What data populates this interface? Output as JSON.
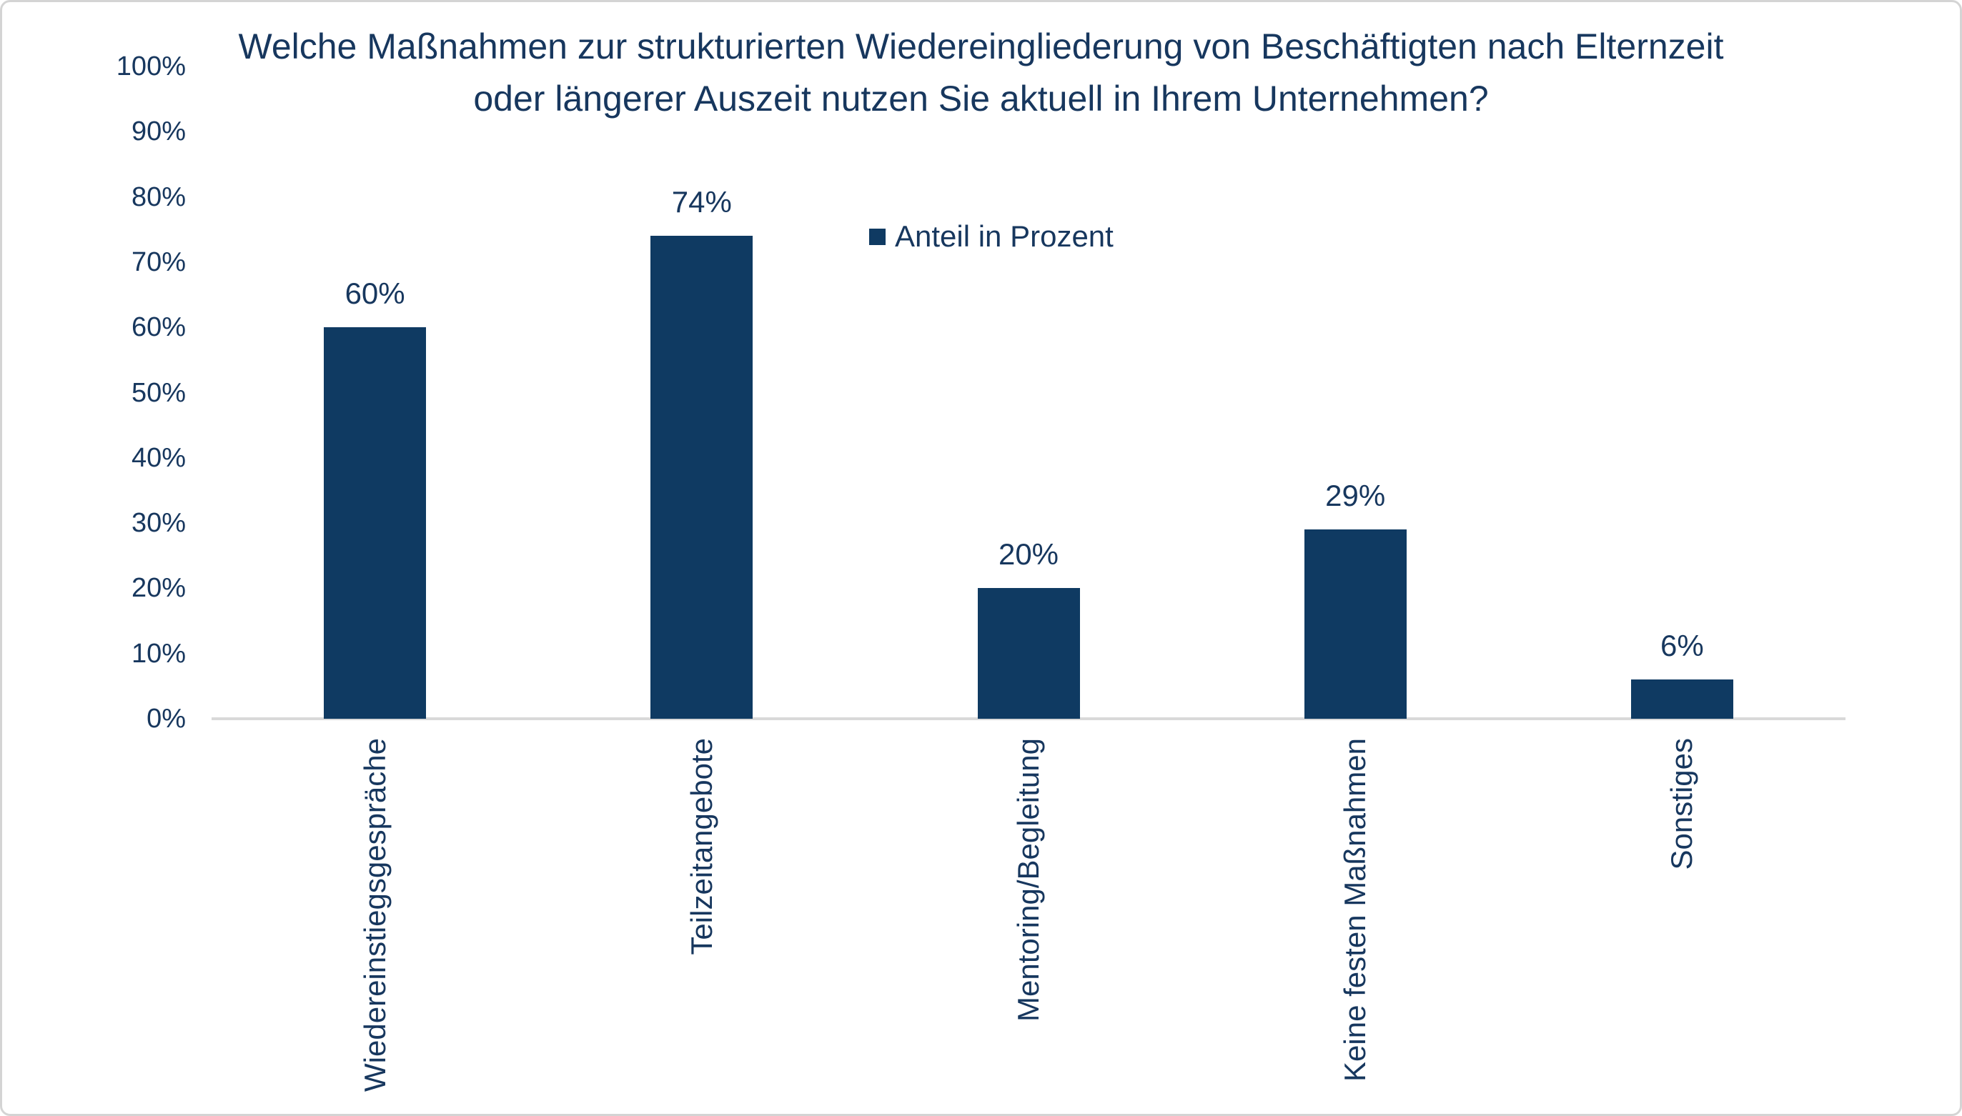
{
  "chart_data": {
    "type": "bar",
    "title": "Welche Maßnahmen zur strukturierten Wiedereingliederung von Beschäftigten nach Elternzeit oder längerer Auszeit nutzen Sie aktuell in Ihrem Unternehmen?",
    "categories": [
      "Wiedereinstiegsgespräche",
      "Teilzeitangebote",
      "Mentoring/Begleitung",
      "Keine festen Maßnahmen",
      "Sonstiges"
    ],
    "values": [
      60,
      74,
      20,
      29,
      6
    ],
    "value_labels": [
      "60%",
      "74%",
      "20%",
      "29%",
      "6%"
    ],
    "xlabel": "",
    "ylabel": "",
    "ylim": [
      0,
      100
    ],
    "yticks": [
      0,
      10,
      20,
      30,
      40,
      50,
      60,
      70,
      80,
      90,
      100
    ],
    "ytick_labels": [
      "0%",
      "10%",
      "20%",
      "30%",
      "40%",
      "50%",
      "60%",
      "70%",
      "80%",
      "90%",
      "100%"
    ],
    "grid": false,
    "legend_entries": [
      "Anteil in Prozent"
    ],
    "legend_position": "top-center",
    "bar_color": "#0f3a62"
  },
  "legend": {
    "label": "Anteil in Prozent",
    "marker_color": "#0f3a62"
  },
  "colors": {
    "bar": "#0f3a62",
    "text": "#17375e",
    "axis_line": "#d9d9d9",
    "frame_border": "#d4d4d4",
    "background": "#ffffff"
  }
}
